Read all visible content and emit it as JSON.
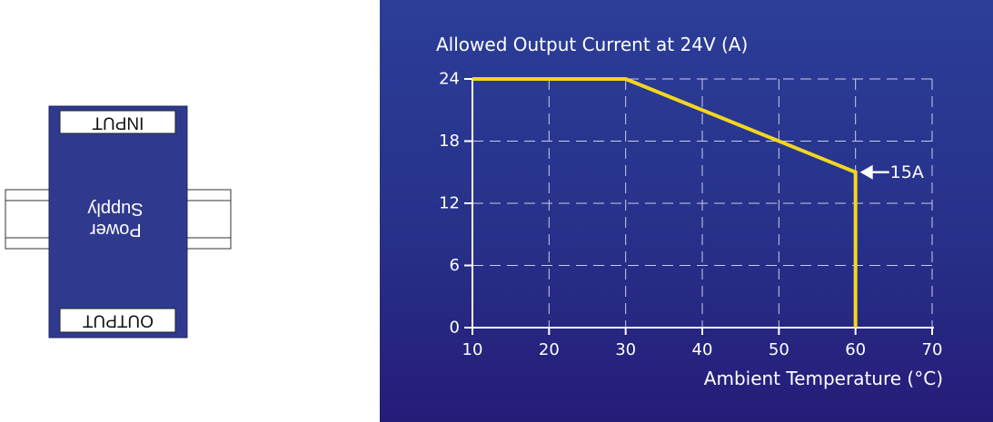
{
  "diagram": {
    "top_label": "INPUT",
    "body_line1": "Power",
    "body_line2": "Supply",
    "bottom_label": "OUTPUT",
    "body_color": "#2f3a8f",
    "note": "diagram text is printed upside-down (rotated 180°)"
  },
  "colors": {
    "line": "#f5d61e",
    "grid": "#c9cce6",
    "axis": "#ffffff",
    "text": "#ffffff"
  },
  "chart_data": {
    "type": "line",
    "title": "Allowed Output Current at 24V (A)",
    "xlabel": "Ambient Temperature (°C)",
    "ylabel": "",
    "xlim": [
      10,
      70
    ],
    "ylim": [
      0,
      24
    ],
    "x_ticks": [
      10,
      20,
      30,
      40,
      50,
      60,
      70
    ],
    "y_ticks": [
      0,
      6,
      12,
      18,
      24
    ],
    "grid": true,
    "grid_style": "dashed",
    "series": [
      {
        "x": [
          10,
          30,
          60,
          60
        ],
        "y": [
          24,
          24,
          15,
          0
        ]
      }
    ],
    "annotations": [
      {
        "text": "15A",
        "x": 60,
        "y": 15,
        "style": "arrow pointing left"
      }
    ]
  }
}
